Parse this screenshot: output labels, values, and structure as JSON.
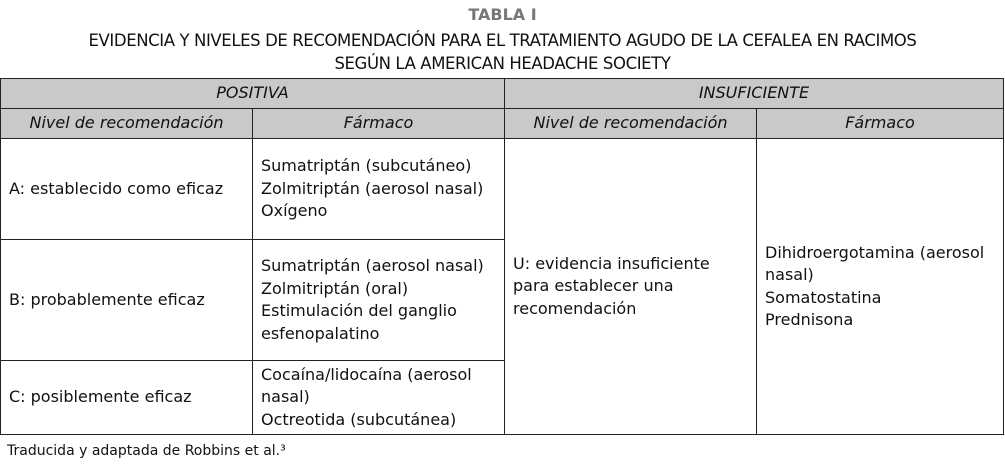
{
  "title": "TABLA I",
  "subtitle_line1": "EVIDENCIA Y NIVELES DE RECOMENDACIÓN PARA EL TRATAMIENTO AGUDO DE LA CEFALEA EN RACIMOS",
  "subtitle_line2": "SEGÚN LA AMERICAN HEADACHE SOCIETY",
  "groups": [
    "POSITIVA",
    "INSUFICIENTE"
  ],
  "columns": [
    "Nivel de recomendación",
    "Fármaco",
    "Nivel de recomendación",
    "Fármaco"
  ],
  "rows": [
    {
      "level": "A: establecido como eficaz",
      "drugs": [
        "Sumatriptán (subcutáneo)",
        "Zolmitriptán (aerosol nasal)",
        "Oxígeno"
      ]
    },
    {
      "level": "B: probablemente eficaz",
      "drugs": [
        "Sumatriptán (aerosol nasal)",
        "Zolmitriptán (oral)",
        "Estimulación del ganglio esfenopalatino"
      ]
    },
    {
      "level": "C: posiblemente eficaz",
      "drugs": [
        "Cocaína/lidocaína (aerosol nasal)",
        "Octreotida (subcutánea)"
      ]
    }
  ],
  "insufficient": {
    "level": "U: evidencia insuficiente para establecer una recomendación",
    "drugs": [
      "Dihidroergotamina (aerosol nasal)",
      "Somatostatina",
      "Prednisona"
    ]
  },
  "footnote": "Traducida y adaptada de Robbins et al.³",
  "colors": {
    "header_bg": "#c9c9c9",
    "title": "#777777"
  }
}
